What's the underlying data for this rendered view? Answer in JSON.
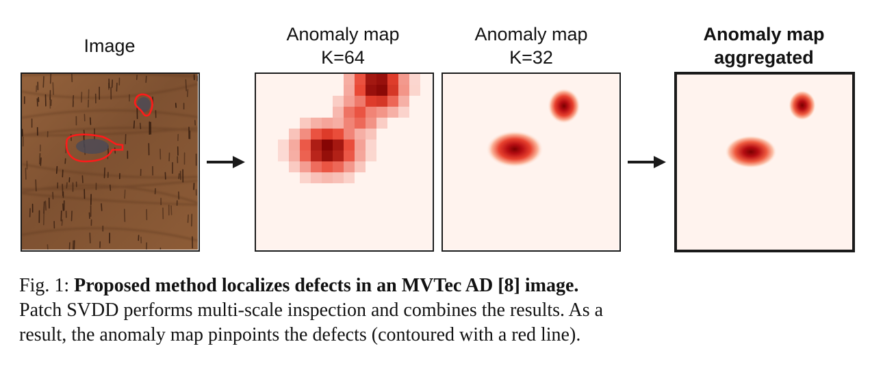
{
  "figure": {
    "panels": [
      {
        "title_lines": [
          "Image"
        ],
        "bold": false
      },
      {
        "title_lines": [
          "Anomaly map",
          "K=64"
        ],
        "bold": false
      },
      {
        "title_lines": [
          "Anomaly map",
          "K=32"
        ],
        "bold": false
      },
      {
        "title_lines": [
          "Anomaly map",
          "aggregated"
        ],
        "bold": true
      }
    ],
    "colors": {
      "wood_base": "#8a5a36",
      "wood_grain": "#3a1f12",
      "contour": "#ff1a1a",
      "heat_low": "#fff3ee",
      "heat_high": "#8b0000"
    }
  },
  "caption": {
    "fig_label": "Fig. 1:",
    "title": "Proposed method localizes defects in an MVTec AD [8] image.",
    "line2": "Patch SVDD performs multi-scale inspection and combines the results. As a",
    "line3": "result, the anomaly map pinpoints the defects (contoured with a red line)."
  }
}
